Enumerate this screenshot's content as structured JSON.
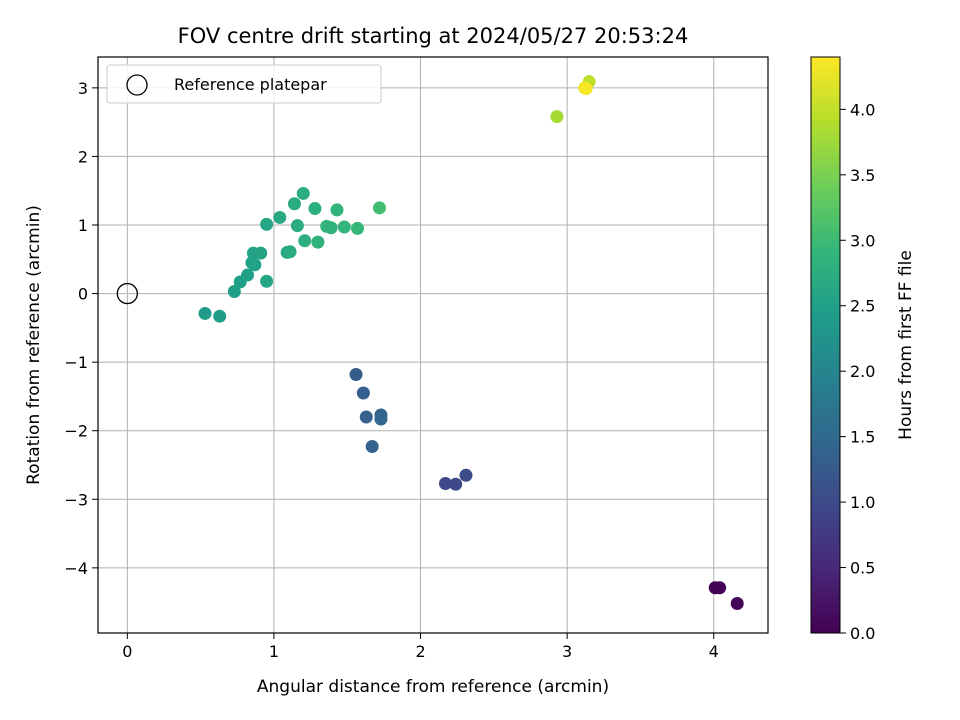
{
  "chart_data": {
    "type": "scatter",
    "title": "FOV centre drift starting at 2024/05/27 20:53:24",
    "xlabel": "Angular distance from reference (arcmin)",
    "ylabel": "Rotation from reference (arcmin)",
    "xlim": [
      -0.2,
      4.37
    ],
    "ylim": [
      -4.95,
      3.45
    ],
    "xticks": [
      0,
      1,
      2,
      3,
      4
    ],
    "yticks": [
      -4,
      -3,
      -2,
      -1,
      0,
      1,
      2,
      3
    ],
    "grid": true,
    "legend": {
      "location": "top-left",
      "entries": [
        "Reference platepar"
      ]
    },
    "reference_point": {
      "x": 0,
      "y": 0
    },
    "colorbar": {
      "label": "Hours from first FF file",
      "min": 0.0,
      "max": 4.4,
      "ticks": [
        "0.0",
        "0.5",
        "1.0",
        "1.5",
        "2.0",
        "2.5",
        "3.0",
        "3.5",
        "4.0"
      ],
      "colormap": [
        "#440154",
        "#482878",
        "#3e4989",
        "#31688e",
        "#26828e",
        "#1f9e89",
        "#35b779",
        "#6ece58",
        "#b5de2b",
        "#fde725"
      ]
    },
    "points": [
      {
        "x": 4.01,
        "y": -4.29,
        "hours": 0.0
      },
      {
        "x": 4.04,
        "y": -4.29,
        "hours": 0.03
      },
      {
        "x": 4.16,
        "y": -4.52,
        "hours": 0.06
      },
      {
        "x": 2.17,
        "y": -2.77,
        "hours": 0.95
      },
      {
        "x": 2.24,
        "y": -2.78,
        "hours": 0.98
      },
      {
        "x": 2.31,
        "y": -2.65,
        "hours": 1.01
      },
      {
        "x": 1.56,
        "y": -1.18,
        "hours": 1.3
      },
      {
        "x": 1.61,
        "y": -1.45,
        "hours": 1.33
      },
      {
        "x": 1.63,
        "y": -1.8,
        "hours": 1.36
      },
      {
        "x": 1.67,
        "y": -2.23,
        "hours": 1.39
      },
      {
        "x": 1.73,
        "y": -1.77,
        "hours": 1.42
      },
      {
        "x": 1.73,
        "y": -1.83,
        "hours": 1.45
      },
      {
        "x": 0.53,
        "y": -0.29,
        "hours": 2.4
      },
      {
        "x": 0.63,
        "y": -0.33,
        "hours": 2.42
      },
      {
        "x": 0.73,
        "y": 0.03,
        "hours": 2.44
      },
      {
        "x": 0.77,
        "y": 0.17,
        "hours": 2.46
      },
      {
        "x": 0.82,
        "y": 0.27,
        "hours": 2.48
      },
      {
        "x": 0.85,
        "y": 0.45,
        "hours": 2.5
      },
      {
        "x": 0.87,
        "y": 0.42,
        "hours": 2.52
      },
      {
        "x": 0.86,
        "y": 0.59,
        "hours": 2.54
      },
      {
        "x": 0.91,
        "y": 0.59,
        "hours": 2.56
      },
      {
        "x": 0.95,
        "y": 0.18,
        "hours": 2.58
      },
      {
        "x": 0.95,
        "y": 1.01,
        "hours": 2.6
      },
      {
        "x": 1.04,
        "y": 1.11,
        "hours": 2.64
      },
      {
        "x": 1.09,
        "y": 0.6,
        "hours": 2.66
      },
      {
        "x": 1.11,
        "y": 0.61,
        "hours": 2.68
      },
      {
        "x": 1.14,
        "y": 1.31,
        "hours": 2.7
      },
      {
        "x": 1.16,
        "y": 0.99,
        "hours": 2.72
      },
      {
        "x": 1.2,
        "y": 1.46,
        "hours": 2.74
      },
      {
        "x": 1.21,
        "y": 0.77,
        "hours": 2.76
      },
      {
        "x": 1.28,
        "y": 1.24,
        "hours": 2.78
      },
      {
        "x": 1.3,
        "y": 0.75,
        "hours": 2.8
      },
      {
        "x": 1.36,
        "y": 0.98,
        "hours": 2.82
      },
      {
        "x": 1.39,
        "y": 0.96,
        "hours": 2.84
      },
      {
        "x": 1.43,
        "y": 1.22,
        "hours": 2.86
      },
      {
        "x": 1.48,
        "y": 0.97,
        "hours": 2.88
      },
      {
        "x": 1.57,
        "y": 0.95,
        "hours": 2.92
      },
      {
        "x": 1.72,
        "y": 1.25,
        "hours": 3.05
      },
      {
        "x": 2.93,
        "y": 2.58,
        "hours": 3.8
      },
      {
        "x": 3.15,
        "y": 3.09,
        "hours": 3.95
      },
      {
        "x": 3.12,
        "y": 3.0,
        "hours": 4.3
      },
      {
        "x": 3.13,
        "y": 2.99,
        "hours": 4.35
      }
    ]
  }
}
